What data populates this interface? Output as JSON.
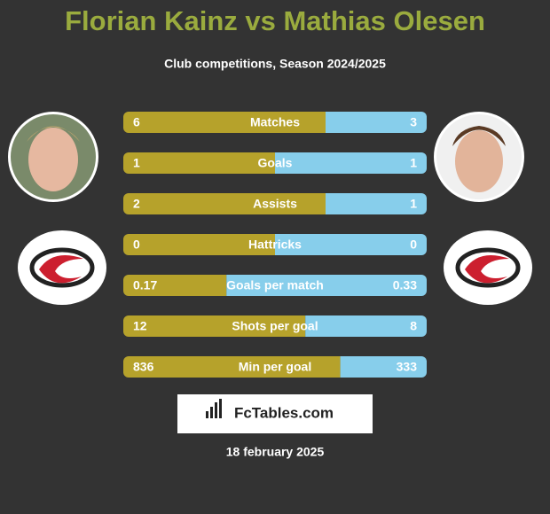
{
  "title": "Florian Kainz vs Mathias Olesen",
  "subtitle": "Club competitions, Season 2024/2025",
  "rows": [
    {
      "label": "Matches",
      "left": 6,
      "right": 3
    },
    {
      "label": "Goals",
      "left": 1,
      "right": 1
    },
    {
      "label": "Assists",
      "left": 2,
      "right": 1
    },
    {
      "label": "Hattricks",
      "left": 0,
      "right": 0
    },
    {
      "label": "Goals per match",
      "left": 0.17,
      "right": 0.33
    },
    {
      "label": "Shots per goal",
      "left": 12,
      "right": 8
    },
    {
      "label": "Min per goal",
      "left": 836,
      "right": 333
    }
  ],
  "brand": "FcTables.com",
  "date": "18 february 2025"
}
